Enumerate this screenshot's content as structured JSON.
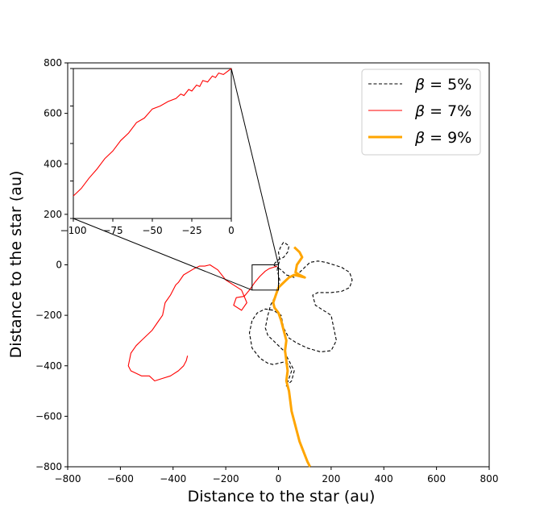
{
  "chart_data": {
    "type": "line",
    "title": "",
    "xlabel": "Distance to the star (au)",
    "ylabel": "Distance to the star (au)",
    "xlim": [
      -800,
      800
    ],
    "ylim": [
      -800,
      800
    ],
    "xticks": [
      "−800",
      "−600",
      "−400",
      "−200",
      "0",
      "200",
      "400",
      "600",
      "800"
    ],
    "yticks": [
      "−800",
      "−600",
      "−400",
      "−200",
      "0",
      "200",
      "400",
      "600",
      "800"
    ],
    "grid": false,
    "legend_position": "top-right",
    "series": [
      {
        "name": "β = 5%",
        "legend_beta": "β",
        "legend_eq": " = 5%",
        "color": "#000000",
        "style": "dashed",
        "x": [
          -5,
          5,
          0,
          10,
          20,
          40,
          35,
          20,
          0,
          -20,
          10,
          30,
          60,
          80,
          100,
          120,
          150,
          180,
          210,
          240,
          270,
          280,
          270,
          240,
          200,
          150,
          130,
          140,
          200,
          210,
          220,
          200,
          160,
          110,
          70,
          40,
          20,
          10,
          -20,
          -50,
          -80,
          -100,
          -110,
          -100,
          -70,
          -40,
          -20,
          0,
          20,
          40,
          50,
          40,
          30,
          50,
          60,
          40,
          20,
          0,
          -20,
          -40,
          -50,
          -40,
          -30,
          -10,
          5,
          -5
        ],
        "y": [
          -20,
          20,
          50,
          75,
          90,
          75,
          50,
          30,
          20,
          0,
          -20,
          -40,
          -50,
          -30,
          -10,
          10,
          15,
          10,
          0,
          -10,
          -30,
          -60,
          -90,
          -105,
          -110,
          -110,
          -120,
          -160,
          -200,
          -250,
          -300,
          -340,
          -345,
          -330,
          -310,
          -290,
          -250,
          -200,
          -180,
          -175,
          -190,
          -220,
          -270,
          -330,
          -370,
          -390,
          -395,
          -390,
          -385,
          -395,
          -420,
          -450,
          -480,
          -460,
          -420,
          -380,
          -340,
          -320,
          -300,
          -280,
          -250,
          -200,
          -160,
          -120,
          -60,
          -20
        ]
      },
      {
        "name": "β = 7%",
        "legend_beta": "β",
        "legend_eq": " = 7%",
        "color": "#ff0000",
        "style": "solid",
        "x": [
          -5,
          -20,
          -35,
          -50,
          -70,
          -90,
          -110,
          -130,
          -160,
          -170,
          -140,
          -120,
          -140,
          -200,
          -230,
          -260,
          -280,
          -300,
          -320,
          -360,
          -380,
          -390,
          -410,
          -430,
          -440,
          -460,
          -480,
          -520,
          -540,
          -560,
          -570,
          -560,
          -540,
          -520,
          -490,
          -470,
          -440,
          -410,
          -380,
          -360,
          -350,
          -345
        ],
        "y": [
          -5,
          -10,
          -15,
          -25,
          -45,
          -70,
          -100,
          -125,
          -130,
          -160,
          -180,
          -150,
          -100,
          -60,
          -20,
          0,
          -5,
          -5,
          -15,
          -40,
          -70,
          -80,
          -120,
          -150,
          -200,
          -230,
          -260,
          -300,
          -320,
          -350,
          -400,
          -420,
          -430,
          -440,
          -440,
          -460,
          -450,
          -440,
          -420,
          -400,
          -380,
          -360
        ]
      },
      {
        "name": "β = 9%",
        "legend_beta": "β",
        "legend_eq": " = 9%",
        "color": "#ffa500",
        "style": "solid",
        "x": [
          60,
          70,
          80,
          90,
          70,
          65,
          80,
          100,
          80,
          60,
          40,
          20,
          0,
          -10,
          -20,
          -15,
          0,
          10,
          20,
          30,
          25,
          30,
          35,
          30,
          40,
          45,
          50,
          60,
          70,
          80,
          95,
          110,
          120
        ],
        "y": [
          70,
          60,
          50,
          30,
          0,
          -30,
          -40,
          -50,
          -45,
          -40,
          -50,
          -70,
          -90,
          -120,
          -150,
          -170,
          -190,
          -220,
          -260,
          -300,
          -340,
          -380,
          -420,
          -460,
          -500,
          -540,
          -580,
          -620,
          -660,
          -700,
          -740,
          -780,
          -800
        ]
      }
    ],
    "inset": {
      "xlim": [
        -100,
        0
      ],
      "ylim": [
        -100,
        0
      ],
      "xticks": [
        "−100",
        "−75",
        "−50",
        "−25",
        "0"
      ],
      "series_name": "β = 7%",
      "x": [
        0,
        -5,
        -8,
        -10,
        -12,
        -15,
        -18,
        -20,
        -22,
        -25,
        -27,
        -30,
        -32,
        -35,
        -40,
        -45,
        -50,
        -55,
        -60,
        -65,
        -70,
        -75,
        -80,
        -85,
        -90,
        -95,
        -100
      ],
      "y": [
        0,
        -4,
        -3,
        -6,
        -5,
        -9,
        -8,
        -12,
        -11,
        -15,
        -14,
        -18,
        -17,
        -20,
        -22,
        -25,
        -27,
        -33,
        -36,
        -43,
        -48,
        -55,
        -60,
        -67,
        -73,
        -80,
        -85
      ]
    }
  }
}
